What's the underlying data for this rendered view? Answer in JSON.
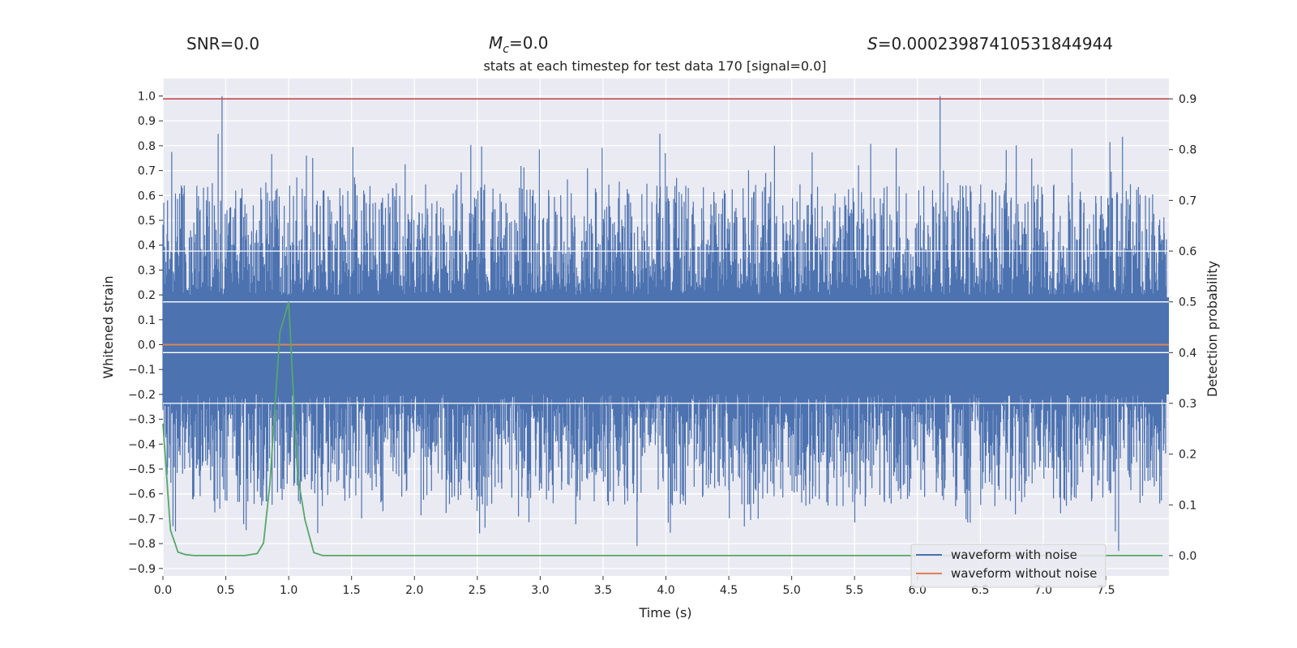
{
  "header": {
    "snr_label": "SNR=0.0",
    "mc_symbol": "M",
    "mc_subscript": "c",
    "mc_value": "=0.0",
    "s_symbol": "S",
    "s_value": "=0.00023987410531844944"
  },
  "chart_data": {
    "type": "line",
    "title": "stats at each timestep for test data 170 [signal=0.0]",
    "xlabel": "Time (s)",
    "ylabel": "Whitened strain",
    "y2label": "Detection probability",
    "xlim": [
      0.0,
      8.0
    ],
    "ylim": [
      -0.93,
      1.07
    ],
    "y2lim": [
      -0.04,
      0.94
    ],
    "x_ticks": [
      "0.0",
      "0.5",
      "1.0",
      "1.5",
      "2.0",
      "2.5",
      "3.0",
      "3.5",
      "4.0",
      "4.5",
      "5.0",
      "5.5",
      "6.0",
      "6.5",
      "7.0",
      "7.5"
    ],
    "y_ticks": [
      "1.0",
      "0.9",
      "0.8",
      "0.7",
      "0.6",
      "0.5",
      "0.4",
      "0.3",
      "0.2",
      "0.1",
      "0.0",
      "−0.1",
      "−0.2",
      "−0.3",
      "−0.4",
      "−0.5",
      "−0.6",
      "−0.7",
      "−0.8",
      "−0.9"
    ],
    "y2_ticks": [
      "0.9",
      "0.8",
      "0.7",
      "0.6",
      "0.5",
      "0.4",
      "0.3",
      "0.2",
      "0.1",
      "0.0"
    ],
    "grid": true,
    "legend_position": "lower-right",
    "threshold_line": {
      "y2": 0.9,
      "color": "#c44e52"
    },
    "series": [
      {
        "name": "waveform with noise",
        "color": "#4c72b0",
        "axis": "left",
        "description_sample": {
          "core_band": [
            -0.2,
            0.2
          ],
          "typical_peak_range": [
            0.3,
            0.6
          ],
          "max_peaks": [
            [
              0.47,
              1.0
            ],
            [
              6.18,
              1.0
            ],
            [
              0.08,
              -0.73
            ],
            [
              3.77,
              -0.81
            ],
            [
              7.6,
              -0.83
            ]
          ]
        }
      },
      {
        "name": "waveform without noise",
        "color": "#dd8452",
        "axis": "left",
        "x": [
          0.0,
          8.0
        ],
        "y": [
          0.0,
          0.0
        ]
      },
      {
        "name": "",
        "color": "#55a868",
        "axis": "right",
        "x": [
          0.0,
          0.06,
          0.12,
          0.18,
          0.25,
          0.35,
          0.5,
          0.65,
          0.75,
          0.8,
          0.85,
          0.93,
          1.0,
          1.07,
          1.13,
          1.2,
          1.27,
          1.5,
          2.0,
          3.0,
          4.0,
          5.0,
          6.0,
          7.0,
          7.95
        ],
        "y": [
          0.26,
          0.05,
          0.007,
          0.002,
          0.0,
          0.0,
          0.0,
          0.0,
          0.004,
          0.025,
          0.14,
          0.44,
          0.5,
          0.16,
          0.07,
          0.006,
          0.0,
          0.0,
          0.0,
          0.0,
          0.0,
          0.0,
          0.0,
          0.0,
          0.0
        ]
      }
    ]
  }
}
